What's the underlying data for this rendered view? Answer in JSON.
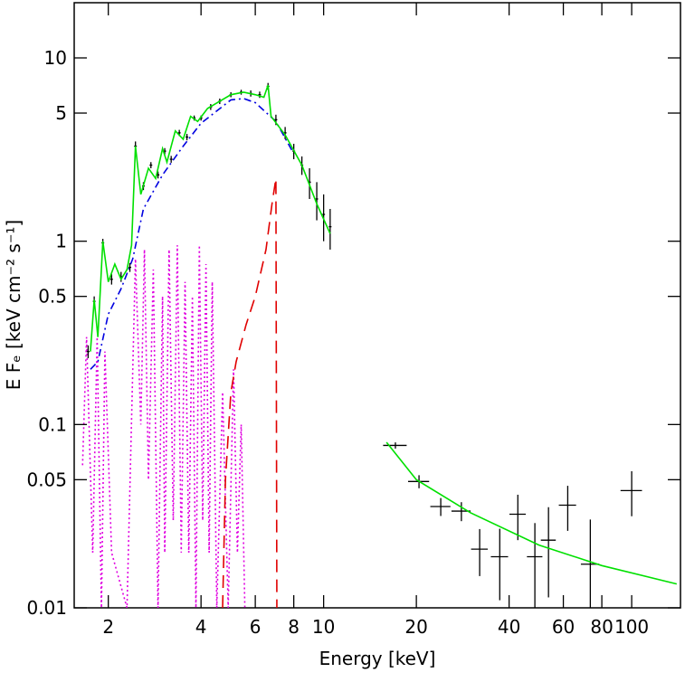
{
  "chart_data": {
    "type": "line",
    "xlabel": "Energy  [keV]",
    "ylabel": "E Fₑ  [keV cm⁻² s⁻¹]",
    "xscale": "log",
    "yscale": "log",
    "xlim": [
      1.55,
      144
    ],
    "ylim": [
      0.01,
      20
    ],
    "xticks": [
      2,
      4,
      6,
      8,
      10,
      20,
      40,
      60,
      80,
      100
    ],
    "yticks": [
      0.01,
      0.05,
      0.1,
      0.5,
      1,
      5,
      10
    ],
    "series": [
      {
        "style": "dotted",
        "color": "#e000e0",
        "x": [
          1.65,
          1.7,
          1.78,
          1.84,
          1.9,
          1.95,
          2.05,
          2.3,
          2.45,
          2.55,
          2.62,
          2.7,
          2.8,
          2.9,
          3.0,
          3.05,
          3.15,
          3.25,
          3.35,
          3.45,
          3.55,
          3.65,
          3.75,
          3.85,
          3.95,
          4.05,
          4.15,
          4.25,
          4.35,
          4.5,
          4.7,
          4.9,
          5.1,
          5.25,
          5.4,
          5.55
        ],
        "values": [
          0.06,
          0.3,
          0.02,
          0.3,
          0.01,
          0.25,
          0.02,
          0.01,
          0.8,
          0.1,
          0.9,
          0.05,
          0.7,
          0.01,
          0.5,
          0.02,
          0.9,
          0.03,
          0.95,
          0.02,
          0.6,
          0.02,
          0.5,
          0.01,
          0.95,
          0.03,
          0.75,
          0.02,
          0.6,
          0.01,
          0.15,
          0.01,
          0.2,
          0.02,
          0.1,
          0.01
        ]
      },
      {
        "style": "dashed",
        "color": "#e00000",
        "x": [
          4.7,
          4.8,
          5.0,
          5.2,
          5.6,
          6.0,
          6.5,
          6.8,
          7.0,
          7.05
        ],
        "values": [
          0.01,
          0.05,
          0.15,
          0.22,
          0.35,
          0.5,
          0.9,
          1.6,
          2.2,
          0.01
        ]
      },
      {
        "style": "dashdot",
        "color": "#0000e0",
        "x": [
          1.75,
          1.85,
          2.0,
          2.2,
          2.4,
          2.6,
          3.0,
          3.5,
          4.0,
          5.0,
          5.5,
          6.0,
          7.0,
          8.0
        ],
        "values": [
          0.2,
          0.22,
          0.4,
          0.55,
          0.8,
          1.5,
          2.3,
          3.3,
          4.4,
          5.9,
          6.0,
          5.7,
          4.5,
          3.0
        ]
      },
      {
        "style": "errorbar",
        "color": "#000000",
        "x": [
          1.72,
          1.8,
          1.92,
          2.05,
          2.2,
          2.35,
          2.45,
          2.6,
          2.75,
          2.9,
          3.05,
          3.2,
          3.4,
          3.6,
          3.8,
          4.0,
          4.3,
          4.6,
          5.0,
          5.4,
          5.8,
          6.2,
          6.6,
          7.0,
          7.5,
          8.0,
          8.5,
          9.0,
          9.5,
          10.0,
          10.5
        ],
        "values": [
          0.25,
          0.47,
          0.98,
          0.62,
          0.64,
          0.72,
          3.3,
          2.0,
          2.6,
          2.3,
          3.1,
          2.8,
          3.9,
          3.7,
          4.7,
          4.7,
          5.4,
          5.8,
          6.3,
          6.5,
          6.4,
          6.3,
          7.0,
          4.6,
          3.9,
          3.1,
          2.6,
          2.1,
          1.7,
          1.4,
          1.2
        ],
        "yerr": [
          0.02,
          0.03,
          0.05,
          0.04,
          0.04,
          0.04,
          0.2,
          0.1,
          0.1,
          0.1,
          0.12,
          0.12,
          0.15,
          0.15,
          0.15,
          0.15,
          0.2,
          0.2,
          0.2,
          0.2,
          0.25,
          0.25,
          0.3,
          0.3,
          0.3,
          0.3,
          0.3,
          0.4,
          0.4,
          0.4,
          0.3
        ]
      },
      {
        "style": "errorbar",
        "color": "#000000",
        "x": [
          17.1,
          20.4,
          24,
          28,
          32.1,
          37.3,
          42.7,
          48.5,
          53.7,
          62,
          73.4,
          100
        ],
        "xerr": [
          1.5,
          1.6,
          1.8,
          2,
          2,
          2.4,
          2.6,
          2.8,
          3,
          4,
          5,
          8
        ],
        "values": [
          0.0769,
          0.0489,
          0.0357,
          0.0337,
          0.0209,
          0.019,
          0.0324,
          0.019,
          0.0234,
          0.0363,
          0.0173,
          0.0436
        ],
        "yerr": [
          0.003,
          0.004,
          0.004,
          0.004,
          0.006,
          0.008,
          0.009,
          0.01,
          0.012,
          0.01,
          0.013,
          0.012
        ]
      },
      {
        "style": "solid",
        "color": "#00e000",
        "x": [
          1.75,
          1.8,
          1.85,
          1.92,
          2.0,
          2.1,
          2.2,
          2.3,
          2.38,
          2.45,
          2.55,
          2.7,
          2.85,
          3.0,
          3.1,
          3.3,
          3.5,
          3.7,
          3.9,
          4.2,
          4.6,
          5.0,
          5.5,
          6.0,
          6.4,
          6.6,
          6.75,
          7.5,
          8.5,
          9.5,
          10.5
        ],
        "values": [
          0.25,
          0.48,
          0.3,
          1.0,
          0.6,
          0.75,
          0.62,
          0.7,
          0.95,
          3.3,
          1.8,
          2.5,
          2.2,
          3.2,
          2.7,
          4.0,
          3.6,
          4.8,
          4.5,
          5.3,
          5.8,
          6.3,
          6.5,
          6.3,
          6.1,
          7.1,
          4.8,
          3.8,
          2.6,
          1.6,
          1.1
        ]
      },
      {
        "style": "solid",
        "color": "#00e000",
        "x": [
          16,
          20,
          30,
          50,
          80,
          140
        ],
        "values": [
          0.08,
          0.05,
          0.033,
          0.022,
          0.017,
          0.0135
        ]
      }
    ]
  }
}
